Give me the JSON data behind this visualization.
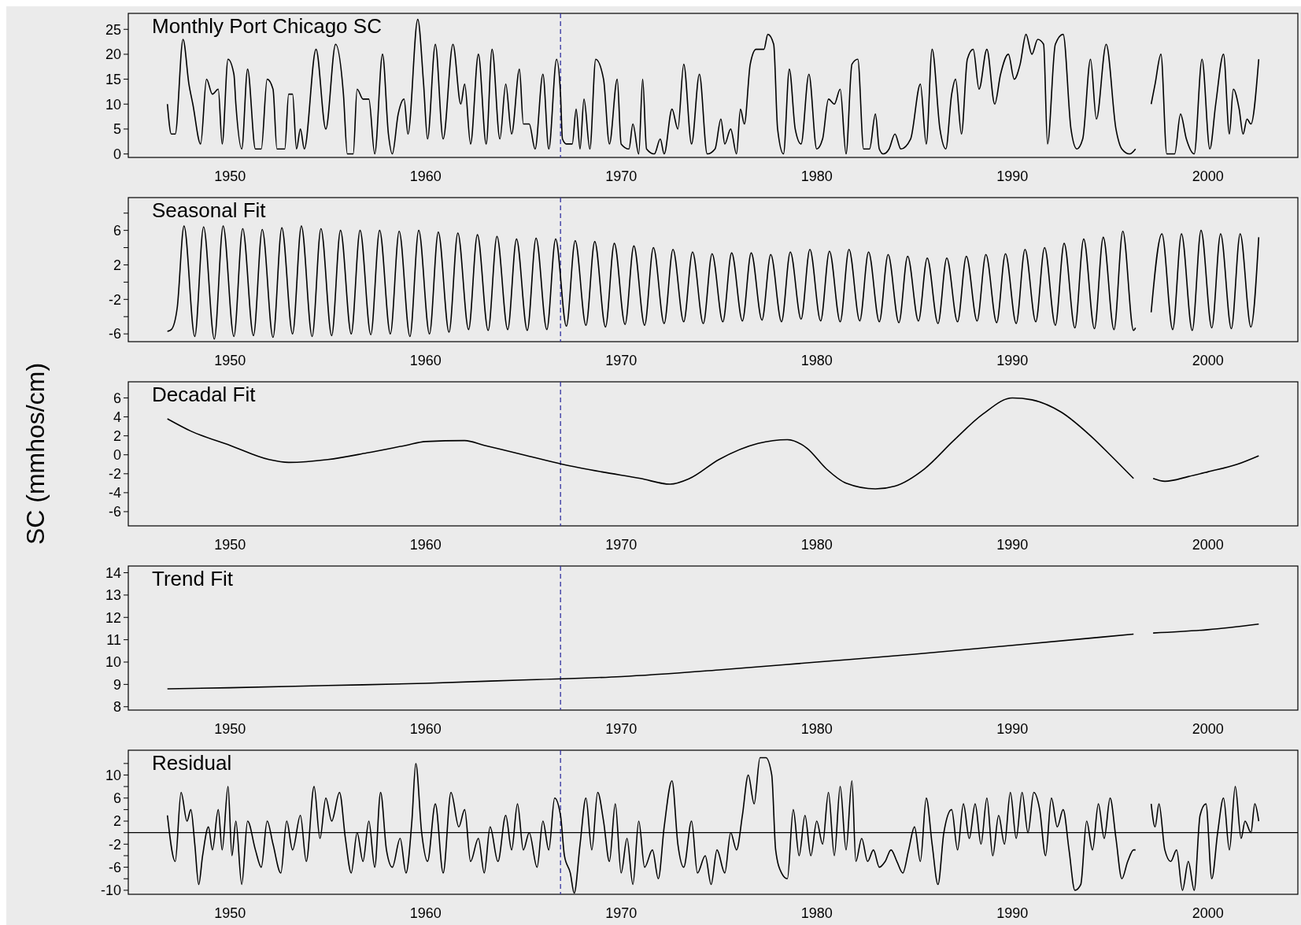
{
  "chart_data": [
    {
      "type": "line",
      "title": "Monthly Port Chicago SC",
      "xlim": [
        1944.8,
        2004.6
      ],
      "xticks": [
        1950,
        1960,
        1970,
        1980,
        1990,
        2000
      ],
      "ylim": [
        -0.7,
        28.2
      ],
      "yticks": [
        0,
        5,
        10,
        15,
        20,
        25
      ],
      "color": "#000000",
      "line_style": "solid",
      "x": [
        1946.8,
        1947.0,
        1947.2,
        1947.6,
        1947.9,
        1948.1,
        1948.5,
        1948.8,
        1949.1,
        1949.4,
        1949.6,
        1949.9,
        1950.2,
        1950.3,
        1950.6,
        1950.9,
        1951.3,
        1951.6,
        1951.9,
        1952.2,
        1952.4,
        1952.8,
        1953.0,
        1953.2,
        1953.4,
        1953.6,
        1953.8,
        1954.4,
        1954.9,
        1955.4,
        1955.8,
        1956.0,
        1956.3,
        1956.5,
        1956.8,
        1957.1,
        1957.4,
        1957.8,
        1958.1,
        1958.3,
        1958.6,
        1958.9,
        1959.1,
        1959.6,
        1959.9,
        1960.1,
        1960.5,
        1960.9,
        1961.4,
        1961.8,
        1962.0,
        1962.3,
        1962.7,
        1963.1,
        1963.4,
        1963.8,
        1964.1,
        1964.4,
        1964.8,
        1965.0,
        1965.3,
        1965.6,
        1966.0,
        1966.3,
        1966.7,
        1966.9,
        1967.0,
        1967.2,
        1967.5,
        1967.7,
        1967.9,
        1968.1,
        1968.4,
        1968.7,
        1969.1,
        1969.4,
        1969.8,
        1970.0,
        1970.4,
        1970.6,
        1970.9,
        1971.1,
        1971.3,
        1971.7,
        1972.0,
        1972.2,
        1972.6,
        1972.9,
        1973.2,
        1973.6,
        1974.0,
        1974.4,
        1974.8,
        1975.1,
        1975.3,
        1975.6,
        1975.9,
        1976.1,
        1976.3,
        1976.6,
        1976.9,
        1977.3,
        1977.5,
        1977.8,
        1978.0,
        1978.3,
        1978.6,
        1978.9,
        1979.2,
        1979.6,
        1980.0,
        1980.3,
        1980.6,
        1980.9,
        1981.2,
        1981.5,
        1981.8,
        1982.1,
        1982.4,
        1982.7,
        1983.0,
        1983.2,
        1983.4,
        1983.7,
        1984.0,
        1984.3,
        1984.8,
        1985.3,
        1985.6,
        1985.9,
        1986.3,
        1986.6,
        1986.9,
        1987.1,
        1987.4,
        1987.7,
        1988.0,
        1988.3,
        1988.7,
        1989.1,
        1989.4,
        1989.8,
        1990.1,
        1990.4,
        1990.7,
        1991.0,
        1991.3,
        1991.6,
        1991.8,
        1992.2,
        1992.6,
        1993.0,
        1993.3,
        1993.6,
        1994.0,
        1994.3,
        1994.8,
        1995.3,
        1995.6,
        1996.0,
        1996.3,
        1996.7,
        1997.1,
        1997.3,
        1997.6,
        1997.9,
        1998.3,
        1998.6,
        1998.9,
        1999.3,
        1999.7,
        2000.1,
        2000.4,
        2000.8,
        2001.1,
        2001.3,
        2001.6,
        2001.8,
        2002.0,
        2002.2,
        2002.6
      ],
      "values": [
        10,
        4,
        4,
        23,
        14,
        10,
        2,
        15,
        12,
        13,
        2,
        19,
        16,
        10,
        1,
        17,
        1,
        1,
        15,
        13,
        1,
        1,
        12,
        12,
        1,
        5,
        1,
        21,
        5,
        22,
        12,
        0,
        0,
        13,
        11,
        11,
        0,
        20,
        4,
        0,
        8,
        11,
        4,
        27,
        14,
        3,
        22,
        3,
        22,
        10,
        14,
        2,
        20,
        2,
        21,
        3,
        14,
        4,
        17,
        6,
        6,
        1,
        16,
        1,
        19,
        12,
        3,
        2,
        2,
        9,
        1,
        11,
        1,
        19,
        15,
        2,
        15,
        2,
        1,
        6,
        0,
        15,
        1,
        0,
        3,
        0,
        9,
        5,
        18,
        2,
        16,
        0,
        1,
        7,
        2,
        5,
        0,
        9,
        6,
        18,
        21,
        21,
        24,
        22,
        5,
        0,
        17,
        5,
        2,
        16,
        1,
        3,
        11,
        10,
        13,
        0,
        18,
        19,
        1,
        1,
        8,
        1,
        0,
        1,
        4,
        1,
        3,
        14,
        2,
        21,
        5,
        1,
        12,
        15,
        4,
        19,
        21,
        13,
        21,
        10,
        16,
        20,
        15,
        18,
        24,
        20,
        23,
        22,
        2,
        22,
        24,
        5,
        1,
        3,
        19,
        7,
        22,
        5,
        1,
        0,
        1,
        null,
        10,
        14,
        20,
        0,
        0,
        8,
        3,
        0,
        19,
        1,
        10,
        20,
        4,
        13,
        9,
        4,
        7,
        6,
        19
      ],
      "ref_lines": [
        {
          "axis": "x",
          "value": 1966.9,
          "color": "#3030a0",
          "line_style": "dashed"
        }
      ]
    },
    {
      "type": "line",
      "title": "Seasonal Fit",
      "xlim": [
        1944.8,
        2004.6
      ],
      "xticks": [
        1950,
        1960,
        1970,
        1980,
        1990,
        2000
      ],
      "ylim": [
        -6.9,
        9.8
      ],
      "yticks": [
        -6,
        {
          "value": -4,
          "label": null
        },
        -2,
        {
          "value": 0,
          "label": null
        },
        2,
        {
          "value": 4,
          "label": null
        },
        6,
        {
          "value": 8,
          "label": null
        }
      ],
      "color": "#000000",
      "line_style": "solid",
      "x": [
        1946.8,
        1947.0,
        1947.3,
        1947.65,
        1948.2,
        1948.65,
        1949.2,
        1949.65,
        1950.2,
        1950.65,
        1951.2,
        1951.65,
        1952.2,
        1952.65,
        1953.2,
        1953.65,
        1954.2,
        1954.65,
        1955.2,
        1955.65,
        1956.2,
        1956.65,
        1957.2,
        1957.65,
        1958.2,
        1958.65,
        1959.2,
        1959.65,
        1960.2,
        1960.65,
        1961.2,
        1961.65,
        1962.2,
        1962.65,
        1963.2,
        1963.65,
        1964.2,
        1964.65,
        1965.2,
        1965.65,
        1966.2,
        1966.65,
        1967.2,
        1967.65,
        1968.2,
        1968.65,
        1969.2,
        1969.65,
        1970.2,
        1970.65,
        1971.2,
        1971.65,
        1972.2,
        1972.65,
        1973.2,
        1973.65,
        1974.2,
        1974.65,
        1975.2,
        1975.65,
        1976.2,
        1976.65,
        1977.2,
        1977.65,
        1978.2,
        1978.65,
        1979.2,
        1979.65,
        1980.2,
        1980.65,
        1981.2,
        1981.65,
        1982.2,
        1982.65,
        1983.2,
        1983.65,
        1984.2,
        1984.65,
        1985.2,
        1985.65,
        1986.2,
        1986.65,
        1987.2,
        1987.65,
        1988.2,
        1988.65,
        1989.2,
        1989.65,
        1990.2,
        1990.65,
        1991.2,
        1991.65,
        1992.2,
        1992.65,
        1993.2,
        1993.65,
        1994.2,
        1994.65,
        1995.2,
        1995.65,
        1996.2,
        1996.3,
        1996.7,
        1997.1,
        1997.65,
        1998.2,
        1998.65,
        1999.2,
        1999.65,
        2000.2,
        2000.65,
        2001.2,
        2001.65,
        2002.2,
        2002.6
      ],
      "values": [
        -5.7,
        -5.5,
        -3,
        6.5,
        -6.3,
        6.4,
        -6.6,
        6.5,
        -6.3,
        6.2,
        -6.2,
        6.1,
        -6.4,
        6.3,
        -6.0,
        6.5,
        -6.3,
        6.2,
        -6.2,
        6.0,
        -6.0,
        6.0,
        -6.1,
        6.0,
        -6.0,
        5.9,
        -6.3,
        6.0,
        -6.0,
        5.8,
        -5.8,
        5.7,
        -5.5,
        5.5,
        -5.6,
        5.3,
        -5.5,
        5.0,
        -5.6,
        5.1,
        -5.5,
        5.0,
        -5.1,
        4.8,
        -5.0,
        4.7,
        -5.2,
        4.5,
        -4.9,
        4.2,
        -5.0,
        4.0,
        -4.8,
        3.8,
        -4.6,
        3.5,
        -4.8,
        3.3,
        -4.6,
        3.4,
        -4.5,
        3.4,
        -4.4,
        3.2,
        -4.6,
        3.5,
        -4.3,
        3.8,
        -4.5,
        3.6,
        -4.6,
        3.8,
        -4.5,
        3.5,
        -4.6,
        3.2,
        -4.7,
        3.0,
        -4.5,
        2.8,
        -4.8,
        2.8,
        -4.6,
        3.0,
        -4.5,
        3.2,
        -4.7,
        3.3,
        -4.8,
        3.8,
        -4.6,
        4.0,
        -5.0,
        4.5,
        -5.3,
        5.0,
        -5.4,
        5.2,
        -5.5,
        5.9,
        -5.6,
        -5.3,
        null,
        -3.5,
        5.6,
        -5.5,
        5.6,
        -5.6,
        6.0,
        -5.3,
        5.6,
        -5.4,
        5.6,
        -5.2,
        5.2
      ],
      "ref_lines": [
        {
          "axis": "x",
          "value": 1966.9,
          "color": "#3030a0",
          "line_style": "dashed"
        }
      ]
    },
    {
      "type": "line",
      "title": "Decadal Fit",
      "ylabel": "SC (mmhos/cm)",
      "xlim": [
        1944.8,
        2004.6
      ],
      "xticks": [
        1950,
        1960,
        1970,
        1980,
        1990,
        2000
      ],
      "ylim": [
        -7.5,
        7.7
      ],
      "yticks": [
        -6,
        -4,
        -2,
        0,
        2,
        4,
        6
      ],
      "color": "#000000",
      "line_style": "solid",
      "x": [
        1946.8,
        1948,
        1950,
        1952,
        1953,
        1955,
        1957,
        1959,
        1960,
        1962,
        1963,
        1965,
        1967,
        1969,
        1971,
        1972.5,
        1973.5,
        1975,
        1977,
        1978.5,
        1979.5,
        1980.5,
        1981.5,
        1983,
        1984,
        1985.5,
        1987,
        1988.5,
        1990,
        1991,
        1992.5,
        1994,
        1995,
        1996.2,
        1996.7,
        1997.2,
        1997.8,
        1999,
        2000,
        2001.5,
        2002.6
      ],
      "values": [
        3.8,
        2.5,
        1,
        -0.5,
        -0.8,
        -0.5,
        0.2,
        1,
        1.4,
        1.5,
        1,
        0,
        -1,
        -1.8,
        -2.5,
        -3.1,
        -2.5,
        -0.5,
        1.2,
        1.6,
        0.7,
        -1.5,
        -3,
        -3.6,
        -3.3,
        -1.5,
        1.5,
        4.3,
        6,
        5.8,
        4.5,
        2,
        0,
        -2.5,
        null,
        -2.5,
        -2.8,
        -2.3,
        -1.8,
        -1,
        -0.1
      ],
      "ref_lines": [
        {
          "axis": "x",
          "value": 1966.9,
          "color": "#3030a0",
          "line_style": "dashed"
        }
      ]
    },
    {
      "type": "line",
      "title": "Trend Fit",
      "xlim": [
        1944.8,
        2004.6
      ],
      "xticks": [
        1950,
        1960,
        1970,
        1980,
        1990,
        2000
      ],
      "ylim": [
        7.85,
        14.3
      ],
      "yticks": [
        8,
        9,
        10,
        11,
        12,
        13,
        14
      ],
      "color": "#000000",
      "line_style": "solid",
      "x": [
        1946.8,
        1950,
        1955,
        1960,
        1965,
        1970,
        1975,
        1980,
        1985,
        1990,
        1996.2,
        1996.7,
        1997.2,
        2000,
        2002.6
      ],
      "values": [
        8.8,
        8.85,
        8.95,
        9.05,
        9.2,
        9.35,
        9.65,
        10,
        10.35,
        10.75,
        11.25,
        null,
        11.3,
        11.45,
        11.7
      ],
      "ref_lines": [
        {
          "axis": "x",
          "value": 1966.9,
          "color": "#3030a0",
          "line_style": "dashed"
        }
      ]
    },
    {
      "type": "line",
      "title": "Residual",
      "xlim": [
        1944.8,
        2004.6
      ],
      "xticks": [
        1950,
        1960,
        1970,
        1980,
        1990,
        2000
      ],
      "ylim": [
        -10.7,
        14.3
      ],
      "yticks": [
        -10,
        {
          "value": -8,
          "label": null
        },
        -6,
        {
          "value": -4,
          "label": null
        },
        -2,
        {
          "value": 0,
          "label": null
        },
        2,
        {
          "value": 4,
          "label": null
        },
        6,
        {
          "value": 8,
          "label": null
        },
        10,
        {
          "value": 12,
          "label": null
        }
      ],
      "color": "#000000",
      "line_style": "solid",
      "x": [
        1946.8,
        1947.2,
        1947.5,
        1947.8,
        1948.0,
        1948.2,
        1948.4,
        1948.6,
        1948.9,
        1949.1,
        1949.4,
        1949.6,
        1949.9,
        1950.1,
        1950.3,
        1950.6,
        1950.9,
        1951.3,
        1951.6,
        1951.9,
        1952.2,
        1952.6,
        1952.9,
        1953.2,
        1953.6,
        1953.9,
        1954.3,
        1954.6,
        1954.9,
        1955.2,
        1955.6,
        1955.9,
        1956.2,
        1956.5,
        1956.8,
        1957.1,
        1957.4,
        1957.7,
        1958.0,
        1958.3,
        1958.7,
        1959.0,
        1959.3,
        1959.5,
        1959.8,
        1960.1,
        1960.5,
        1960.9,
        1961.3,
        1961.7,
        1962.0,
        1962.3,
        1962.7,
        1963.0,
        1963.3,
        1963.7,
        1964.1,
        1964.4,
        1964.7,
        1965.0,
        1965.3,
        1965.7,
        1966.0,
        1966.3,
        1966.6,
        1966.9,
        1967.1,
        1967.4,
        1967.6,
        1967.9,
        1968.2,
        1968.5,
        1968.8,
        1969.1,
        1969.4,
        1969.7,
        1970.0,
        1970.3,
        1970.6,
        1970.9,
        1971.2,
        1971.6,
        1971.9,
        1972.2,
        1972.6,
        1972.9,
        1973.2,
        1973.6,
        1973.9,
        1974.3,
        1974.6,
        1974.9,
        1975.3,
        1975.6,
        1975.9,
        1976.2,
        1976.5,
        1976.8,
        1977.1,
        1977.4,
        1977.7,
        1977.9,
        1978.2,
        1978.5,
        1978.8,
        1979.1,
        1979.4,
        1979.7,
        1980.0,
        1980.3,
        1980.6,
        1980.9,
        1981.2,
        1981.5,
        1981.8,
        1982.0,
        1982.3,
        1982.6,
        1982.9,
        1983.2,
        1983.5,
        1983.8,
        1984.1,
        1984.4,
        1984.7,
        1985.0,
        1985.3,
        1985.6,
        1985.9,
        1986.2,
        1986.5,
        1986.9,
        1987.2,
        1987.5,
        1987.8,
        1988.1,
        1988.4,
        1988.7,
        1989.0,
        1989.3,
        1989.6,
        1989.9,
        1990.2,
        1990.5,
        1990.8,
        1991.1,
        1991.4,
        1991.7,
        1992.0,
        1992.3,
        1992.6,
        1992.9,
        1993.2,
        1993.5,
        1993.8,
        1994.1,
        1994.4,
        1994.7,
        1995.0,
        1995.3,
        1995.6,
        1995.9,
        1996.2,
        1996.3,
        1996.7,
        1997.1,
        1997.3,
        1997.5,
        1997.8,
        1998.1,
        1998.4,
        1998.7,
        1999.0,
        1999.3,
        1999.6,
        1999.9,
        2000.2,
        2000.5,
        2000.8,
        2001.1,
        2001.4,
        2001.7,
        2001.9,
        2002.2,
        2002.4,
        2002.6
      ],
      "values": [
        3,
        -5,
        7,
        2,
        4,
        -2,
        -9,
        -4,
        1,
        -3,
        4,
        -3,
        8,
        -4,
        2,
        -9,
        2,
        -3,
        -6,
        2,
        -2,
        -7,
        2,
        -3,
        3,
        -5,
        8,
        -1,
        6,
        2,
        7,
        -1,
        -7,
        0,
        -5,
        2,
        -6,
        7,
        -3,
        -6,
        -1,
        -7,
        2,
        12,
        0,
        -5,
        5,
        -7,
        7,
        1,
        4,
        -5,
        -1,
        -7,
        1,
        -5,
        3,
        -3,
        5,
        -3,
        0,
        -6,
        2,
        -3,
        6,
        3,
        -4,
        -7,
        -10.5,
        -2,
        6,
        -3,
        7,
        2,
        -5,
        5,
        -7,
        -1,
        -9,
        2,
        -6,
        -3,
        -8,
        1,
        9,
        -2,
        -6,
        2,
        -7,
        -4,
        -9,
        -3,
        -7,
        0,
        -3,
        3,
        10,
        5,
        13,
        13,
        10,
        -3,
        -7,
        -8,
        4,
        -4,
        3,
        -4,
        2,
        -2,
        7,
        -4,
        8,
        -3,
        9,
        -5,
        -1,
        -5,
        -3,
        -6,
        -5,
        -3,
        -5,
        -7,
        -3,
        1,
        -5,
        6,
        -2,
        -9,
        0,
        4,
        -3,
        5,
        -1,
        5,
        -2,
        6,
        -4,
        3,
        -2,
        7,
        -1,
        7,
        0,
        7,
        4,
        -4,
        6,
        1,
        4,
        -3,
        -10,
        -9,
        2,
        -3,
        5,
        -1,
        6,
        -1,
        -8,
        -5,
        -3,
        -3,
        null,
        5,
        1,
        5,
        -3,
        -5,
        -3,
        -10,
        -5,
        -10,
        3,
        5,
        -8,
        0,
        6,
        -3,
        8,
        -1,
        2,
        0,
        5,
        2
      ],
      "ref_lines": [
        {
          "axis": "x",
          "value": 1966.9,
          "color": "#3030a0",
          "line_style": "dashed"
        },
        {
          "axis": "y",
          "value": 0,
          "color": "#000000",
          "line_style": "solid"
        }
      ]
    }
  ]
}
